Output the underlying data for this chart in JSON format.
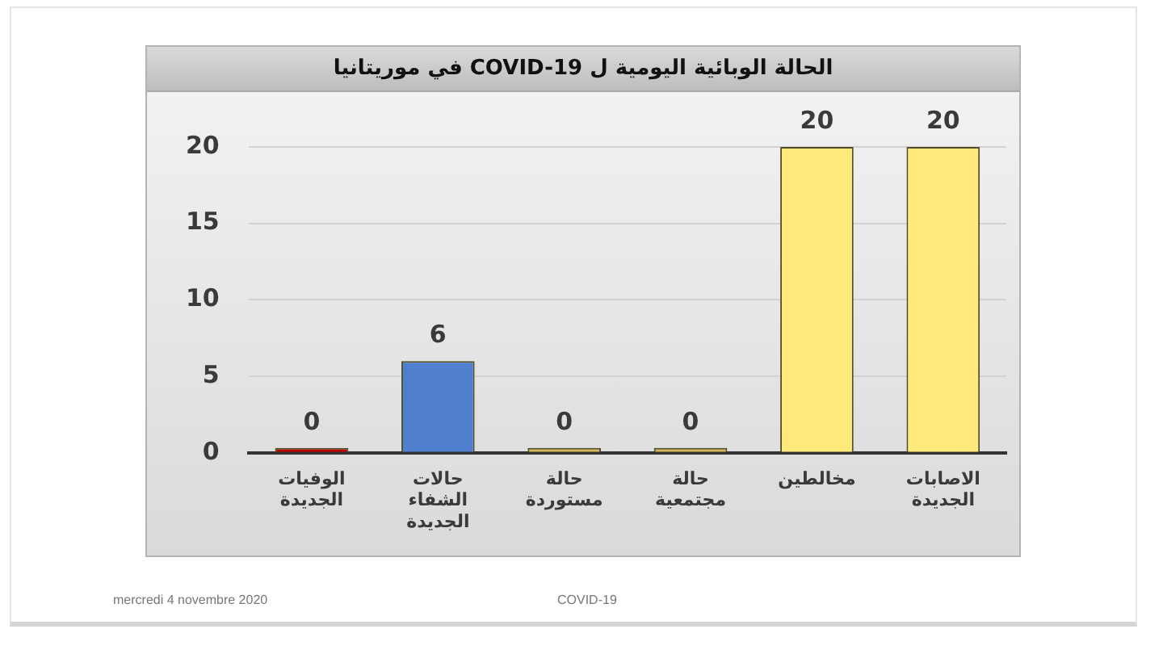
{
  "chart_data": {
    "type": "bar",
    "title": "الحالة الوبائية اليومية ل COVID-19 في موريتانيا",
    "categories": [
      "الوفيات الجديدة",
      "حالات الشفاء الجديدة",
      "حالة مستوردة",
      "حالة مجتمعية",
      "مخالطين",
      "الاصابات الجديدة"
    ],
    "values": [
      0,
      6,
      0,
      0,
      20,
      20
    ],
    "colors": [
      "#c00000",
      "#4f7fce",
      "#d6b656",
      "#d6b656",
      "#ffe97a",
      "#ffe97a"
    ],
    "ylim": [
      0,
      20
    ],
    "yticks": [
      0,
      5,
      10,
      15,
      20
    ],
    "grid": "y",
    "data_labels": true,
    "annotations": [
      "mercredi 4 novembre 2020",
      "COVID-19"
    ]
  }
}
